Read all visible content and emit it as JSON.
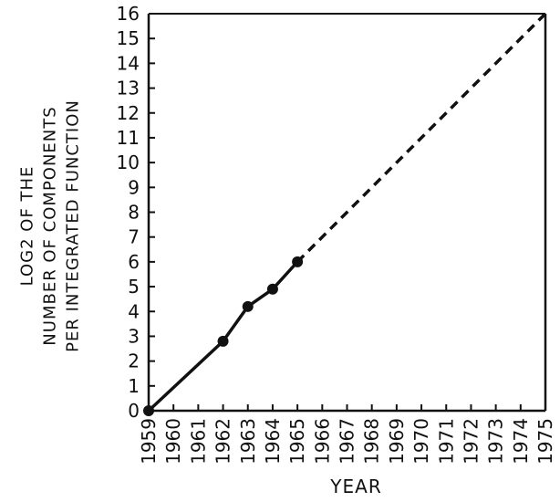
{
  "chart_data": {
    "type": "line",
    "xlabel": "YEAR",
    "ylabel_lines": [
      "LOG2 OF THE",
      "NUMBER OF COMPONENTS",
      "PER INTEGRATED FUNCTION"
    ],
    "xlim": [
      1959,
      1975
    ],
    "ylim": [
      0,
      16
    ],
    "x_ticks": [
      "1959",
      "1960",
      "1961",
      "1962",
      "1963",
      "1964",
      "1965",
      "1966",
      "1967",
      "1968",
      "1969",
      "1970",
      "1971",
      "1972",
      "1973",
      "1974",
      "1975"
    ],
    "y_ticks": [
      "0",
      "1",
      "2",
      "3",
      "4",
      "5",
      "6",
      "7",
      "8",
      "9",
      "10",
      "11",
      "12",
      "13",
      "14",
      "15",
      "16"
    ],
    "grid": false,
    "series": [
      {
        "style": "solid-with-markers",
        "x": [
          1959,
          1962,
          1963,
          1964,
          1965
        ],
        "y": [
          0,
          2.8,
          4.2,
          4.9,
          6.0
        ]
      },
      {
        "style": "dashed",
        "x": [
          1965,
          1975
        ],
        "y": [
          6.0,
          16
        ]
      }
    ],
    "colors": {
      "ink": "#111111",
      "background": "#ffffff"
    }
  }
}
